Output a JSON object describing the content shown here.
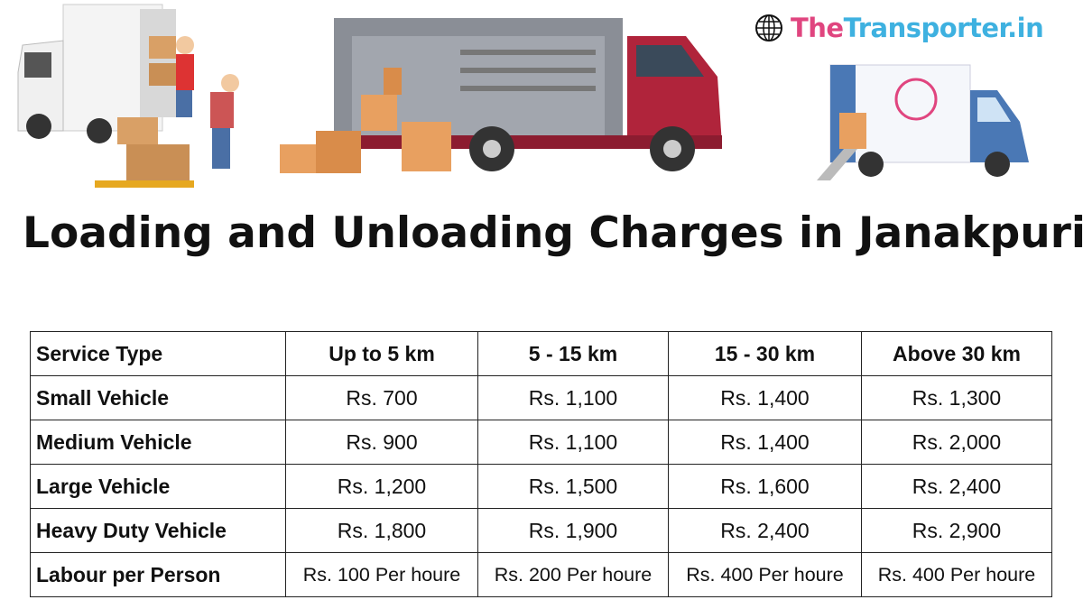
{
  "brand": {
    "icon": "globe-icon",
    "name_part1": "The",
    "name_part2": "Transporter.in",
    "colors": {
      "the": "#e0457f",
      "transporter": "#3eb1e0"
    }
  },
  "title": "Loading and Unloading Charges in Janakpuri",
  "illustrations": [
    "workers-loading-truck",
    "red-cargo-truck-with-boxes",
    "thetransporter-branded-truck"
  ],
  "table": {
    "headers": [
      "Service Type",
      "Up to 5 km",
      "5 - 15 km",
      "15 - 30 km",
      "Above 30 km"
    ],
    "rows": [
      [
        "Small Vehicle",
        "Rs. 700",
        "Rs. 1,100",
        "Rs. 1,400",
        "Rs. 1,300"
      ],
      [
        "Medium Vehicle",
        "Rs. 900",
        "Rs. 1,100",
        "Rs. 1,400",
        "Rs. 2,000"
      ],
      [
        "Large Vehicle",
        "Rs. 1,200",
        "Rs. 1,500",
        "Rs. 1,600",
        "Rs. 2,400"
      ],
      [
        "Heavy Duty Vehicle",
        "Rs. 1,800",
        "Rs. 1,900",
        "Rs. 2,400",
        "Rs. 2,900"
      ],
      [
        "Labour per Person",
        "Rs. 100 Per houre",
        "Rs. 200 Per houre",
        "Rs. 400 Per houre",
        "Rs. 400 Per houre"
      ]
    ]
  }
}
